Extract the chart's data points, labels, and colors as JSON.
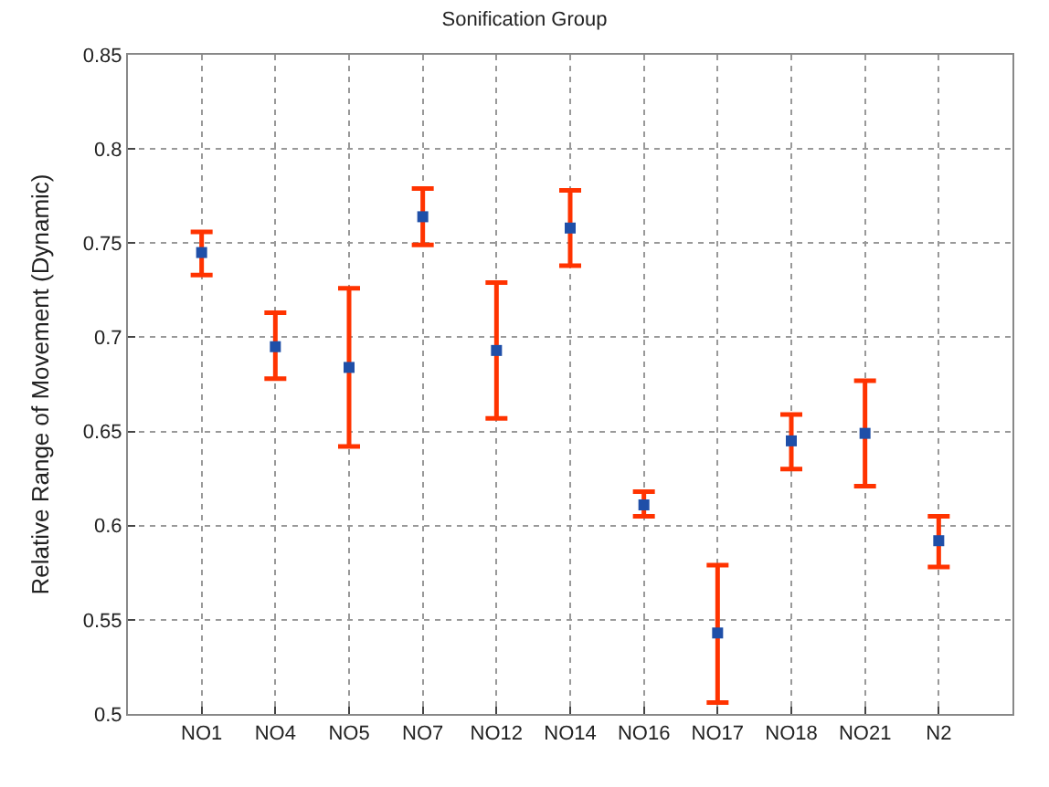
{
  "chart_data": {
    "type": "scatter",
    "title": "Sonification Group",
    "ylabel": "Relative Range of Movement (Dynamic)",
    "categories": [
      "NO1",
      "NO4",
      "NO5",
      "NO7",
      "NO12",
      "NO14",
      "NO16",
      "NO17",
      "NO18",
      "NO21",
      "N2"
    ],
    "series": [
      {
        "color": "#1f4fa8",
        "values": [
          0.745,
          0.695,
          0.684,
          0.764,
          0.693,
          0.758,
          0.611,
          0.543,
          0.645,
          0.649,
          0.592
        ],
        "errors": [
          [
            0.733,
            0.756
          ],
          [
            0.678,
            0.713
          ],
          [
            0.642,
            0.726
          ],
          [
            0.749,
            0.779
          ],
          [
            0.657,
            0.729
          ],
          [
            0.738,
            0.778
          ],
          [
            0.605,
            0.618
          ],
          [
            0.506,
            0.579
          ],
          [
            0.63,
            0.659
          ],
          [
            0.621,
            0.677
          ],
          [
            0.578,
            0.605
          ]
        ]
      }
    ],
    "ylim": [
      0.5,
      0.85
    ],
    "yticks": [
      0.5,
      0.55,
      0.6,
      0.65,
      0.7,
      0.75,
      0.8,
      0.85
    ],
    "grid": true,
    "marker": "square",
    "legend": false
  }
}
